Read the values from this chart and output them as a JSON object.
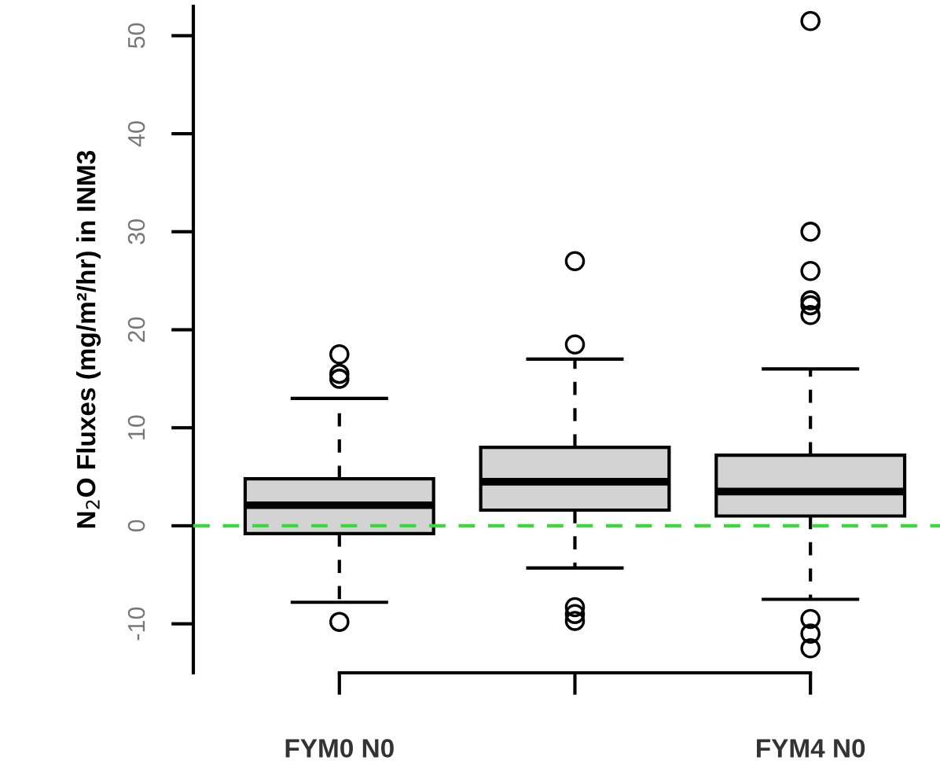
{
  "chart_data": {
    "type": "box",
    "ylabel": "N$_{2}$O Fluxes (mg/m²/hr) in INM3",
    "categories": [
      "FYM0 N0",
      null,
      "FYM4 N0"
    ],
    "series": [
      {
        "color": "#d3d3d3",
        "boxes": [
          {
            "low": -7.8,
            "q1": -0.8,
            "median": 2.1,
            "q3": 4.8,
            "high": 13,
            "outliers": [
              17.5,
              15.5,
              15,
              -9.8
            ]
          },
          {
            "low": -4.3,
            "q1": 1.6,
            "median": 4.5,
            "q3": 8,
            "high": 17,
            "outliers": [
              27,
              18.5,
              -8.3,
              -9,
              -9.7
            ]
          },
          {
            "low": -7.5,
            "q1": 1,
            "median": 3.5,
            "q3": 7.2,
            "high": 16,
            "outliers": [
              51.5,
              30,
              26,
              23,
              22.5,
              21.5,
              -9.5,
              -11,
              -12.5
            ]
          }
        ]
      }
    ],
    "ylim": [
      -15,
      53
    ],
    "yticks": [
      -10,
      0,
      10,
      20,
      30,
      40,
      50
    ],
    "ref_lines": [
      {
        "axis": "y",
        "value": 0,
        "color": "#33dd33",
        "line_style": "dashed"
      }
    ],
    "grid": false
  }
}
